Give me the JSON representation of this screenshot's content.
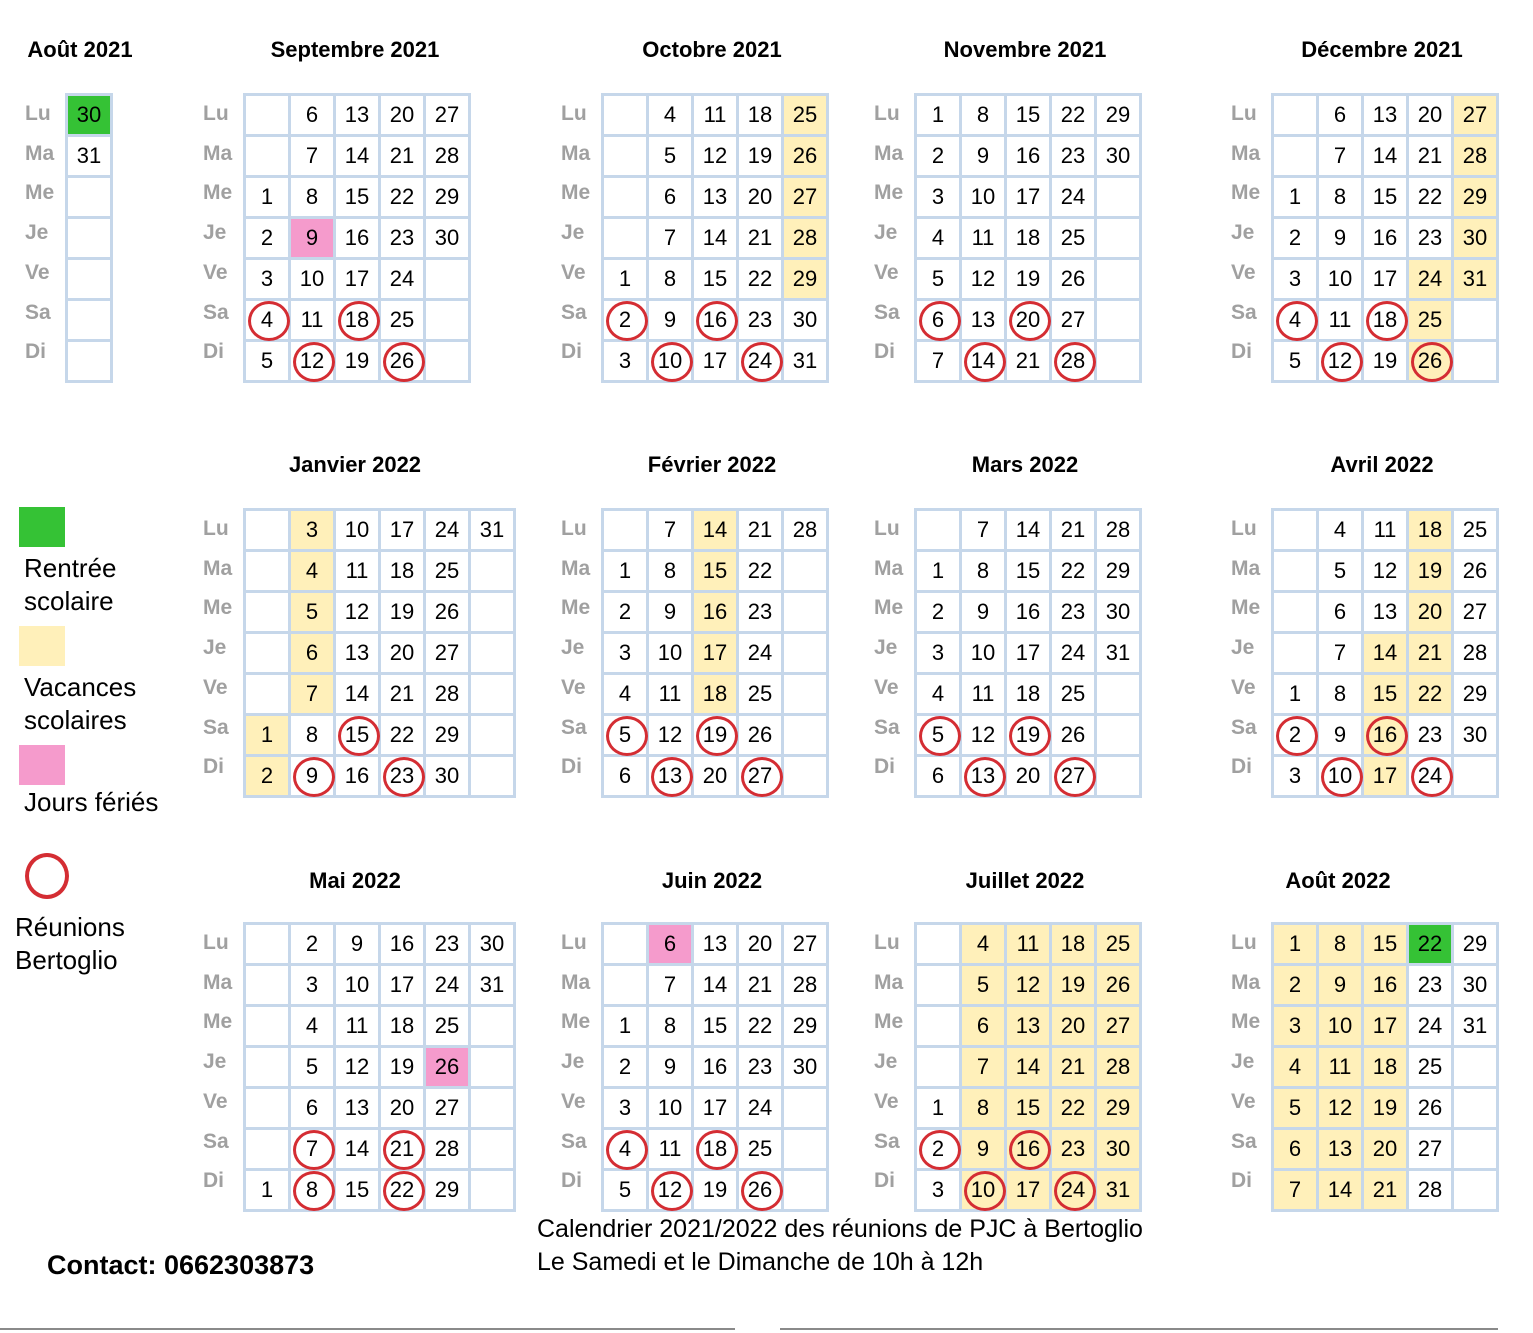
{
  "colors": {
    "rentree": "#35c235",
    "vacances": "#fff0ba",
    "ferie": "#f59bcc",
    "reunion_ring": "#d42d33",
    "grid_border": "#c6d7ea",
    "day_label": "#a0a0a0"
  },
  "day_labels": [
    "Lu",
    "Ma",
    "Me",
    "Je",
    "Ve",
    "Sa",
    "Di"
  ],
  "months": [
    {
      "title": "Août 2021",
      "columns": [
        [
          "30",
          "31",
          "",
          "",
          "",
          "",
          ""
        ]
      ],
      "rentree": [
        "30"
      ],
      "vacances": [],
      "ferie": [],
      "reunions": []
    },
    {
      "title": "Septembre 2021",
      "columns": [
        [
          "",
          "",
          "1",
          "2",
          "3",
          "4",
          "5"
        ],
        [
          "6",
          "7",
          "8",
          "9",
          "10",
          "11",
          "12"
        ],
        [
          "13",
          "14",
          "15",
          "16",
          "17",
          "18",
          "19"
        ],
        [
          "20",
          "21",
          "22",
          "23",
          "24",
          "25",
          "26"
        ],
        [
          "27",
          "28",
          "29",
          "30",
          "",
          "",
          ""
        ]
      ],
      "rentree": [],
      "vacances": [],
      "ferie": [
        "9"
      ],
      "reunions": [
        "4",
        "12",
        "18",
        "26"
      ]
    },
    {
      "title": "Octobre 2021",
      "columns": [
        [
          "",
          "",
          "",
          "",
          "1",
          "2",
          "3"
        ],
        [
          "4",
          "5",
          "6",
          "7",
          "8",
          "9",
          "10"
        ],
        [
          "11",
          "12",
          "13",
          "14",
          "15",
          "16",
          "17"
        ],
        [
          "18",
          "19",
          "20",
          "21",
          "22",
          "23",
          "24"
        ],
        [
          "25",
          "26",
          "27",
          "28",
          "29",
          "30",
          "31"
        ]
      ],
      "rentree": [],
      "vacances": [
        "25",
        "26",
        "27",
        "28",
        "29"
      ],
      "ferie": [],
      "reunions": [
        "2",
        "10",
        "16",
        "24"
      ]
    },
    {
      "title": "Novembre 2021",
      "columns": [
        [
          "1",
          "2",
          "3",
          "4",
          "5",
          "6",
          "7"
        ],
        [
          "8",
          "9",
          "10",
          "11",
          "12",
          "13",
          "14"
        ],
        [
          "15",
          "16",
          "17",
          "18",
          "19",
          "20",
          "21"
        ],
        [
          "22",
          "23",
          "24",
          "25",
          "26",
          "27",
          "28"
        ],
        [
          "29",
          "30",
          "",
          "",
          "",
          "",
          ""
        ]
      ],
      "rentree": [],
      "vacances": [],
      "ferie": [],
      "reunions": [
        "6",
        "14",
        "20",
        "28"
      ]
    },
    {
      "title": "Décembre 2021",
      "columns": [
        [
          "",
          "",
          "1",
          "2",
          "3",
          "4",
          "5"
        ],
        [
          "6",
          "7",
          "8",
          "9",
          "10",
          "11",
          "12"
        ],
        [
          "13",
          "14",
          "15",
          "16",
          "17",
          "18",
          "19"
        ],
        [
          "20",
          "21",
          "22",
          "23",
          "24",
          "25",
          "26"
        ],
        [
          "27",
          "28",
          "29",
          "30",
          "31",
          "",
          ""
        ]
      ],
      "rentree": [],
      "vacances": [
        "24",
        "25",
        "26",
        "27",
        "28",
        "29",
        "30",
        "31"
      ],
      "ferie": [],
      "reunions": [
        "4",
        "12",
        "18",
        "26"
      ]
    },
    {
      "title": "Janvier 2022",
      "columns": [
        [
          "",
          "",
          "",
          "",
          "",
          "1",
          "2"
        ],
        [
          "3",
          "4",
          "5",
          "6",
          "7",
          "8",
          "9"
        ],
        [
          "10",
          "11",
          "12",
          "13",
          "14",
          "15",
          "16"
        ],
        [
          "17",
          "18",
          "19",
          "20",
          "21",
          "22",
          "23"
        ],
        [
          "24",
          "25",
          "26",
          "27",
          "28",
          "29",
          "30"
        ],
        [
          "31",
          "",
          "",
          "",
          "",
          "",
          ""
        ]
      ],
      "rentree": [],
      "vacances": [
        "1",
        "2",
        "3",
        "4",
        "5",
        "6",
        "7"
      ],
      "ferie": [],
      "reunions": [
        "9",
        "15",
        "23"
      ]
    },
    {
      "title": "Février 2022",
      "columns": [
        [
          "",
          "1",
          "2",
          "3",
          "4",
          "5",
          "6"
        ],
        [
          "7",
          "8",
          "9",
          "10",
          "11",
          "12",
          "13"
        ],
        [
          "14",
          "15",
          "16",
          "17",
          "18",
          "19",
          "20"
        ],
        [
          "21",
          "22",
          "23",
          "24",
          "25",
          "26",
          "27"
        ],
        [
          "28",
          "",
          "",
          "",
          "",
          "",
          ""
        ]
      ],
      "rentree": [],
      "vacances": [
        "14",
        "15",
        "16",
        "17",
        "18"
      ],
      "ferie": [],
      "reunions": [
        "5",
        "13",
        "19",
        "27"
      ]
    },
    {
      "title": "Mars 2022",
      "columns": [
        [
          "",
          "1",
          "2",
          "3",
          "4",
          "5",
          "6"
        ],
        [
          "7",
          "8",
          "9",
          "10",
          "11",
          "12",
          "13"
        ],
        [
          "14",
          "15",
          "16",
          "17",
          "18",
          "19",
          "20"
        ],
        [
          "21",
          "22",
          "23",
          "24",
          "25",
          "26",
          "27"
        ],
        [
          "28",
          "29",
          "30",
          "31",
          "",
          "",
          ""
        ]
      ],
      "rentree": [],
      "vacances": [],
      "ferie": [],
      "reunions": [
        "5",
        "13",
        "19",
        "27"
      ]
    },
    {
      "title": "Avril 2022",
      "columns": [
        [
          "",
          "",
          "",
          "",
          "1",
          "2",
          "3"
        ],
        [
          "4",
          "5",
          "6",
          "7",
          "8",
          "9",
          "10"
        ],
        [
          "11",
          "12",
          "13",
          "14",
          "15",
          "16",
          "17"
        ],
        [
          "18",
          "19",
          "20",
          "21",
          "22",
          "23",
          "24"
        ],
        [
          "25",
          "26",
          "27",
          "28",
          "29",
          "30",
          ""
        ]
      ],
      "rentree": [],
      "vacances": [
        "14",
        "15",
        "16",
        "17",
        "18",
        "19",
        "20",
        "21",
        "22"
      ],
      "ferie": [],
      "reunions": [
        "2",
        "10",
        "16",
        "24"
      ]
    },
    {
      "title": "Mai 2022",
      "columns": [
        [
          "",
          "",
          "",
          "",
          "",
          "",
          "1"
        ],
        [
          "2",
          "3",
          "4",
          "5",
          "6",
          "7",
          "8"
        ],
        [
          "9",
          "10",
          "11",
          "12",
          "13",
          "14",
          "15"
        ],
        [
          "16",
          "17",
          "18",
          "19",
          "20",
          "21",
          "22"
        ],
        [
          "23",
          "24",
          "25",
          "26",
          "27",
          "28",
          "29"
        ],
        [
          "30",
          "31",
          "",
          "",
          "",
          "",
          ""
        ]
      ],
      "rentree": [],
      "vacances": [],
      "ferie": [
        "26"
      ],
      "reunions": [
        "7",
        "8",
        "21",
        "22"
      ]
    },
    {
      "title": "Juin 2022",
      "columns": [
        [
          "",
          "",
          "1",
          "2",
          "3",
          "4",
          "5"
        ],
        [
          "6",
          "7",
          "8",
          "9",
          "10",
          "11",
          "12"
        ],
        [
          "13",
          "14",
          "15",
          "16",
          "17",
          "18",
          "19"
        ],
        [
          "20",
          "21",
          "22",
          "23",
          "24",
          "25",
          "26"
        ],
        [
          "27",
          "28",
          "29",
          "30",
          "",
          "",
          ""
        ]
      ],
      "rentree": [],
      "vacances": [],
      "ferie": [
        "6"
      ],
      "reunions": [
        "4",
        "12",
        "18",
        "26"
      ]
    },
    {
      "title": "Juillet 2022",
      "columns": [
        [
          "",
          "",
          "",
          "",
          "1",
          "2",
          "3"
        ],
        [
          "4",
          "5",
          "6",
          "7",
          "8",
          "9",
          "10"
        ],
        [
          "11",
          "12",
          "13",
          "14",
          "15",
          "16",
          "17"
        ],
        [
          "18",
          "19",
          "20",
          "21",
          "22",
          "23",
          "24"
        ],
        [
          "25",
          "26",
          "27",
          "28",
          "29",
          "30",
          "31"
        ]
      ],
      "rentree": [],
      "vacances": [
        "4",
        "5",
        "6",
        "7",
        "8",
        "9",
        "10",
        "11",
        "12",
        "13",
        "14",
        "15",
        "16",
        "17",
        "18",
        "19",
        "20",
        "21",
        "22",
        "23",
        "24",
        "25",
        "26",
        "27",
        "28",
        "29",
        "30",
        "31"
      ],
      "ferie": [],
      "reunions": [
        "2",
        "10",
        "16",
        "24"
      ]
    },
    {
      "title": "Août 2022",
      "columns": [
        [
          "1",
          "2",
          "3",
          "4",
          "5",
          "6",
          "7"
        ],
        [
          "8",
          "9",
          "10",
          "11",
          "12",
          "13",
          "14"
        ],
        [
          "15",
          "16",
          "17",
          "18",
          "19",
          "20",
          "21"
        ],
        [
          "22",
          "23",
          "24",
          "25",
          "26",
          "27",
          "28"
        ],
        [
          "29",
          "30",
          "31",
          "",
          "",
          "",
          ""
        ]
      ],
      "rentree": [
        "22"
      ],
      "vacances": [
        "1",
        "2",
        "3",
        "4",
        "5",
        "6",
        "7",
        "8",
        "9",
        "10",
        "11",
        "12",
        "13",
        "14",
        "15",
        "16",
        "17",
        "18",
        "19",
        "20",
        "21"
      ],
      "ferie": [],
      "reunions": []
    }
  ],
  "legend": {
    "rentree_label_1": "Rentrée",
    "rentree_label_2": "scolaire",
    "vacances_label_1": "Vacances",
    "vacances_label_2": "scolaires",
    "ferie_label": "Jours fériés",
    "reunion_label_1": "Réunions",
    "reunion_label_2": "Bertoglio"
  },
  "note": {
    "line1": "Calendrier 2021/2022 des réunions  de PJC à Bertoglio",
    "line2": "Le Samedi et le Dimanche de 10h à 12h"
  },
  "contact": "Contact: 0662303873"
}
